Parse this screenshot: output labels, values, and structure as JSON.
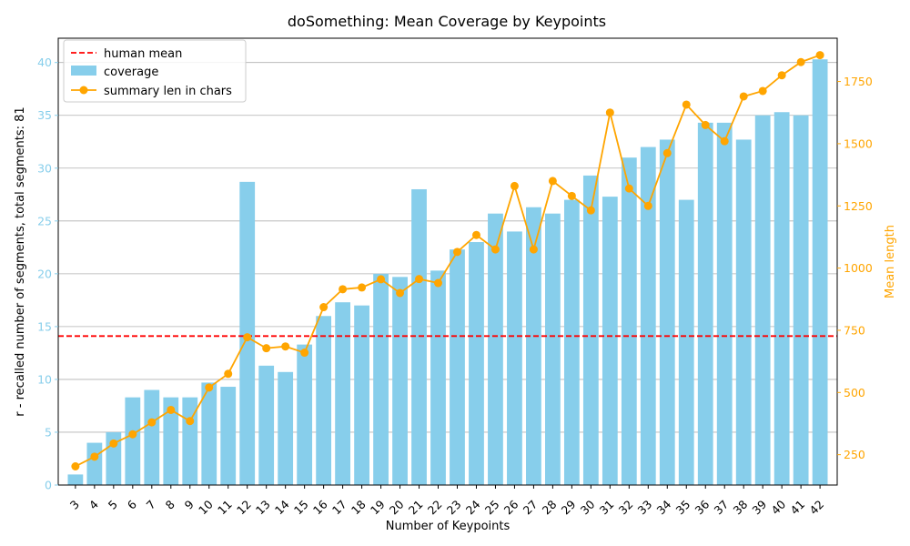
{
  "chart_data": {
    "type": "bar",
    "title": "doSomething: Mean Coverage by Keypoints",
    "xlabel": "Number of Keypoints",
    "ylabel": "r - recalled number of segments, total segments: 81",
    "y2label": "Mean length",
    "categories": [
      "3",
      "4",
      "5",
      "6",
      "7",
      "8",
      "9",
      "10",
      "11",
      "12",
      "13",
      "14",
      "15",
      "16",
      "17",
      "18",
      "19",
      "20",
      "21",
      "22",
      "23",
      "24",
      "25",
      "26",
      "27",
      "28",
      "29",
      "30",
      "31",
      "32",
      "33",
      "34",
      "35",
      "36",
      "37",
      "38",
      "39",
      "40",
      "41",
      "42"
    ],
    "ylim": [
      0,
      42.3
    ],
    "yticks": [
      0,
      5,
      10,
      15,
      20,
      25,
      30,
      35,
      40
    ],
    "y2lim": [
      128,
      1924
    ],
    "y2ticks": [
      250,
      500,
      750,
      1000,
      1250,
      1500,
      1750
    ],
    "grid": "horizontal (left axis)",
    "legend_position": "top-left",
    "series": [
      {
        "name": "coverage",
        "kind": "bar",
        "axis": "left",
        "color": "#87ceeb",
        "values": [
          1.0,
          4.0,
          5.0,
          8.3,
          9.0,
          8.3,
          8.3,
          9.7,
          9.3,
          28.7,
          11.3,
          10.7,
          13.3,
          16.0,
          17.3,
          17.0,
          20.0,
          19.7,
          28.0,
          20.3,
          22.3,
          23.0,
          25.7,
          24.0,
          26.3,
          25.7,
          27.0,
          29.3,
          27.3,
          31.0,
          32.0,
          32.7,
          27.0,
          34.3,
          34.3,
          32.7,
          35.0,
          35.3,
          35.0,
          40.3
        ]
      },
      {
        "name": "summary len in chars",
        "kind": "line",
        "axis": "right",
        "color": "#ffa500",
        "values": [
          203,
          242,
          295,
          332,
          380,
          430,
          385,
          520,
          575,
          722,
          678,
          685,
          660,
          843,
          915,
          922,
          955,
          900,
          956,
          940,
          1065,
          1133,
          1075,
          1330,
          1075,
          1350,
          1290,
          1232,
          1625,
          1320,
          1250,
          1462,
          1657,
          1575,
          1510,
          1690,
          1712,
          1775,
          1828,
          1856
        ]
      }
    ],
    "reference_lines": [
      {
        "name": "human mean",
        "axis": "left",
        "value": 14.1,
        "color": "#ff0000",
        "style": "dashed"
      }
    ],
    "colors": {
      "left_axis": "#87ceeb",
      "right_axis": "#ffa500",
      "axis": "#000000",
      "grid": "#b0b0b0"
    }
  }
}
